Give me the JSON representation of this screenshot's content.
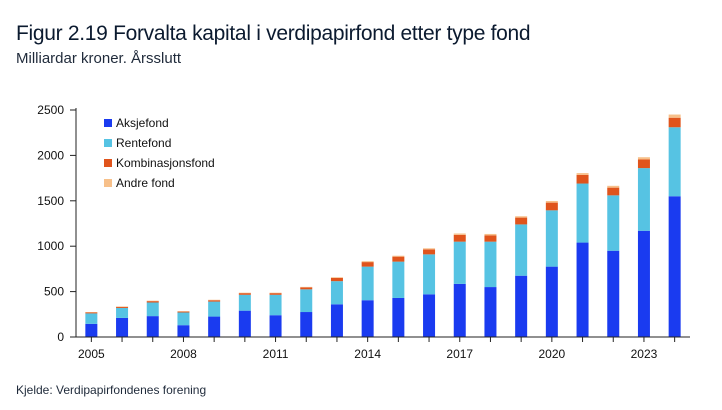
{
  "header": {
    "title": "Figur 2.19 Forvalta kapital i verdipapirfond etter type fond",
    "subtitle": "Milliardar kroner. Årsslutt"
  },
  "footer": {
    "source": "Kjelde: Verdipapirfondenes forening"
  },
  "colors": {
    "aksjefond": "#1a3bf0",
    "rentefond": "#56c3e3",
    "kombinasjonsfond": "#e0541c",
    "andre": "#f7c08a",
    "axis": "#222222"
  },
  "chart_data": {
    "type": "bar",
    "stacked": true,
    "title": "Figur 2.19 Forvalta kapital i verdipapirfond etter type fond",
    "subtitle": "Milliardar kroner. Årsslutt",
    "xlabel": "",
    "ylabel": "",
    "ylim": [
      0,
      2500
    ],
    "yticks": [
      0,
      500,
      1000,
      1500,
      2000,
      2500
    ],
    "categories": [
      2005,
      2006,
      2007,
      2008,
      2009,
      2010,
      2011,
      2012,
      2013,
      2014,
      2015,
      2016,
      2017,
      2018,
      2019,
      2020,
      2021,
      2022,
      2023,
      2024
    ],
    "xtick_labels": [
      "2005",
      "2008",
      "2011",
      "2014",
      "2017",
      "2020",
      "2023"
    ],
    "legend_position": "top-left",
    "series": [
      {
        "name": "Aksjefond",
        "color_key": "aksjefond",
        "values": [
          145,
          210,
          230,
          130,
          225,
          290,
          240,
          275,
          360,
          405,
          430,
          470,
          585,
          550,
          675,
          775,
          1040,
          950,
          1170,
          1550
        ]
      },
      {
        "name": "Rentefond",
        "color_key": "rentefond",
        "values": [
          115,
          110,
          150,
          140,
          165,
          175,
          225,
          250,
          255,
          370,
          400,
          440,
          465,
          500,
          565,
          620,
          650,
          610,
          690,
          760
        ]
      },
      {
        "name": "Kombinasjonsfond",
        "color_key": "kombinasjonsfond",
        "values": [
          10,
          12,
          15,
          10,
          15,
          18,
          18,
          22,
          35,
          50,
          55,
          55,
          75,
          70,
          75,
          85,
          95,
          85,
          95,
          105
        ]
      },
      {
        "name": "Andre fond",
        "color_key": "andre",
        "values": [
          5,
          5,
          5,
          5,
          5,
          5,
          5,
          5,
          8,
          10,
          10,
          12,
          15,
          15,
          15,
          18,
          20,
          20,
          25,
          35
        ]
      }
    ]
  }
}
